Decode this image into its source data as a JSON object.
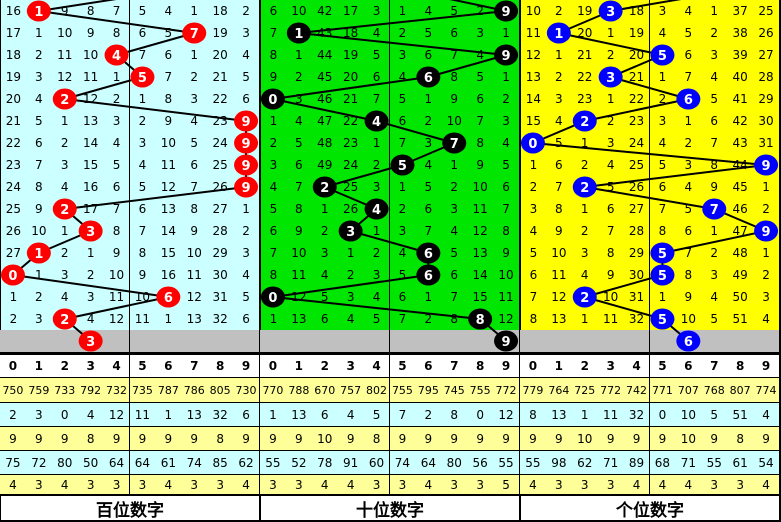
{
  "panels": [
    {
      "name": "hundreds",
      "label": "百位数字",
      "bg": "#ccffff",
      "ball_color": "#ff0000",
      "rows": [
        [
          16,
          null,
          9,
          8,
          7,
          5,
          4,
          1,
          18,
          2
        ],
        [
          17,
          1,
          10,
          9,
          8,
          6,
          5,
          null,
          19,
          3
        ],
        [
          18,
          2,
          11,
          10,
          null,
          7,
          6,
          1,
          20,
          4
        ],
        [
          19,
          3,
          12,
          11,
          1,
          null,
          7,
          2,
          21,
          5
        ],
        [
          20,
          4,
          null,
          12,
          2,
          1,
          8,
          3,
          22,
          6
        ],
        [
          21,
          5,
          1,
          13,
          3,
          2,
          9,
          4,
          23,
          null
        ],
        [
          22,
          6,
          2,
          14,
          4,
          3,
          10,
          5,
          24,
          null
        ],
        [
          23,
          7,
          3,
          15,
          5,
          4,
          11,
          6,
          25,
          null
        ],
        [
          24,
          8,
          4,
          16,
          6,
          5,
          12,
          7,
          26,
          null
        ],
        [
          25,
          9,
          null,
          17,
          7,
          6,
          13,
          8,
          27,
          1
        ],
        [
          26,
          10,
          1,
          null,
          8,
          7,
          14,
          9,
          28,
          2
        ],
        [
          27,
          null,
          2,
          1,
          9,
          8,
          15,
          10,
          29,
          3
        ],
        [
          null,
          1,
          3,
          2,
          10,
          9,
          16,
          11,
          30,
          4
        ],
        [
          1,
          2,
          4,
          3,
          11,
          10,
          null,
          12,
          31,
          5
        ],
        [
          2,
          3,
          null,
          4,
          12,
          11,
          1,
          13,
          32,
          6
        ]
      ],
      "balls": [
        1,
        7,
        4,
        5,
        2,
        9,
        9,
        9,
        9,
        2,
        3,
        1,
        0,
        6,
        2,
        3
      ],
      "stats": [
        [
          750,
          759,
          733,
          792,
          732,
          735,
          787,
          786,
          805,
          730
        ],
        [
          2,
          3,
          0,
          4,
          12,
          11,
          1,
          13,
          32,
          6
        ],
        [
          9,
          9,
          9,
          8,
          9,
          9,
          9,
          9,
          8,
          9
        ],
        [
          75,
          72,
          80,
          50,
          64,
          64,
          61,
          74,
          85,
          62
        ],
        [
          4,
          3,
          4,
          3,
          3,
          3,
          4,
          3,
          3,
          4
        ]
      ]
    },
    {
      "name": "tens",
      "label": "十位数字",
      "bg": "#00e600",
      "ball_color": "#000000",
      "rows": [
        [
          6,
          10,
          42,
          17,
          3,
          1,
          4,
          5,
          2,
          null
        ],
        [
          7,
          null,
          43,
          18,
          4,
          2,
          5,
          6,
          3,
          1
        ],
        [
          8,
          1,
          44,
          19,
          5,
          3,
          6,
          7,
          4,
          null
        ],
        [
          9,
          2,
          45,
          20,
          6,
          4,
          null,
          8,
          5,
          1
        ],
        [
          null,
          3,
          46,
          21,
          7,
          5,
          1,
          9,
          6,
          2
        ],
        [
          1,
          4,
          47,
          22,
          null,
          6,
          2,
          10,
          7,
          3
        ],
        [
          2,
          5,
          48,
          23,
          1,
          7,
          3,
          null,
          8,
          4
        ],
        [
          3,
          6,
          49,
          24,
          2,
          null,
          4,
          1,
          9,
          5
        ],
        [
          4,
          7,
          null,
          25,
          3,
          1,
          5,
          2,
          10,
          6
        ],
        [
          5,
          8,
          1,
          26,
          null,
          2,
          6,
          3,
          11,
          7
        ],
        [
          6,
          9,
          2,
          null,
          1,
          3,
          7,
          4,
          12,
          8
        ],
        [
          7,
          10,
          3,
          1,
          2,
          4,
          null,
          5,
          13,
          9
        ],
        [
          8,
          11,
          4,
          2,
          3,
          5,
          null,
          6,
          14,
          10
        ],
        [
          null,
          12,
          5,
          3,
          4,
          6,
          1,
          7,
          15,
          11
        ],
        [
          1,
          13,
          6,
          4,
          5,
          7,
          2,
          8,
          null,
          12
        ]
      ],
      "balls": [
        9,
        1,
        9,
        6,
        0,
        4,
        7,
        5,
        2,
        4,
        3,
        6,
        6,
        0,
        8,
        9
      ],
      "stats": [
        [
          770,
          788,
          670,
          757,
          802,
          755,
          795,
          745,
          755,
          772
        ],
        [
          1,
          13,
          6,
          4,
          5,
          7,
          2,
          8,
          0,
          12
        ],
        [
          9,
          9,
          10,
          9,
          8,
          9,
          9,
          9,
          9,
          9
        ],
        [
          55,
          52,
          78,
          91,
          60,
          74,
          64,
          80,
          56,
          55
        ],
        [
          3,
          3,
          4,
          4,
          3,
          3,
          4,
          3,
          3,
          5
        ]
      ]
    },
    {
      "name": "units",
      "label": "个位数字",
      "bg": "#ffff00",
      "ball_color": "#0000ff",
      "rows": [
        [
          10,
          2,
          19,
          null,
          18,
          3,
          4,
          1,
          37,
          25
        ],
        [
          11,
          null,
          20,
          1,
          19,
          4,
          5,
          2,
          38,
          26
        ],
        [
          12,
          1,
          21,
          2,
          20,
          null,
          6,
          3,
          39,
          27
        ],
        [
          13,
          2,
          22,
          null,
          21,
          1,
          7,
          4,
          40,
          28
        ],
        [
          14,
          3,
          23,
          1,
          22,
          2,
          null,
          5,
          41,
          29
        ],
        [
          15,
          4,
          null,
          2,
          23,
          3,
          1,
          6,
          42,
          30
        ],
        [
          null,
          5,
          1,
          3,
          24,
          4,
          2,
          7,
          43,
          31
        ],
        [
          1,
          6,
          2,
          4,
          25,
          5,
          3,
          8,
          44,
          null
        ],
        [
          2,
          7,
          null,
          5,
          26,
          6,
          4,
          9,
          45,
          1
        ],
        [
          3,
          8,
          1,
          6,
          27,
          7,
          5,
          null,
          46,
          2
        ],
        [
          4,
          9,
          2,
          7,
          28,
          8,
          6,
          1,
          47,
          null
        ],
        [
          5,
          10,
          3,
          8,
          29,
          null,
          7,
          2,
          48,
          1
        ],
        [
          6,
          11,
          4,
          9,
          30,
          null,
          8,
          3,
          49,
          2
        ],
        [
          7,
          12,
          null,
          10,
          31,
          1,
          9,
          4,
          50,
          3
        ],
        [
          8,
          13,
          1,
          11,
          32,
          null,
          10,
          5,
          51,
          4
        ]
      ],
      "balls": [
        3,
        1,
        5,
        3,
        6,
        2,
        0,
        9,
        2,
        7,
        9,
        5,
        5,
        2,
        5,
        6
      ],
      "stats": [
        [
          779,
          764,
          725,
          772,
          742,
          771,
          707,
          768,
          807,
          774
        ],
        [
          8,
          13,
          1,
          11,
          32,
          0,
          10,
          5,
          51,
          4
        ],
        [
          9,
          9,
          10,
          9,
          9,
          9,
          10,
          9,
          8,
          9
        ],
        [
          55,
          98,
          62,
          71,
          89,
          68,
          71,
          55,
          61,
          54
        ],
        [
          4,
          3,
          3,
          3,
          4,
          4,
          4,
          3,
          3,
          4
        ]
      ]
    }
  ],
  "digits": [
    "0",
    "1",
    "2",
    "3",
    "4",
    "5",
    "6",
    "7",
    "8",
    "9"
  ],
  "colors": {
    "gray_row": "#c0c0c0",
    "stat_yellow": "#ffff99",
    "stat_cyan": "#ccffff",
    "grid_line": "#000000"
  }
}
